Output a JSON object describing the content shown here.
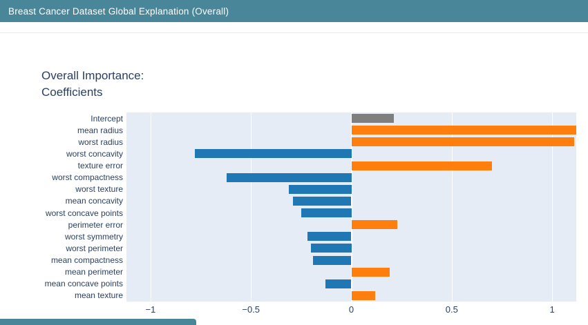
{
  "header": {
    "title": "Breast Cancer Dataset Global Explanation (Overall)",
    "background": "#4a8699"
  },
  "chart": {
    "title": "Overall Importance:\nCoefficients"
  },
  "chart_data": {
    "type": "bar",
    "orientation": "horizontal",
    "title": "Overall Importance: Coefficients",
    "categories": [
      "Intercept",
      "mean radius",
      "worst radius",
      "worst concavity",
      "texture error",
      "worst compactness",
      "worst texture",
      "mean concavity",
      "worst concave points",
      "perimeter error",
      "worst symmetry",
      "worst perimeter",
      "mean compactness",
      "mean perimeter",
      "mean concave points",
      "mean texture"
    ],
    "values": [
      0.21,
      1.12,
      1.11,
      -0.78,
      0.7,
      -0.62,
      -0.31,
      -0.29,
      -0.25,
      0.23,
      -0.22,
      -0.2,
      -0.19,
      0.19,
      -0.13,
      0.12
    ],
    "colors": [
      "#7f7f7f",
      "#ff7f0e",
      "#ff7f0e",
      "#1f77b4",
      "#ff7f0e",
      "#1f77b4",
      "#1f77b4",
      "#1f77b4",
      "#1f77b4",
      "#ff7f0e",
      "#1f77b4",
      "#1f77b4",
      "#1f77b4",
      "#ff7f0e",
      "#1f77b4",
      "#ff7f0e"
    ],
    "palette": {
      "positive": "#ff7f0e",
      "negative": "#1f77b4",
      "intercept": "#7f7f7f"
    },
    "xlabel": "",
    "ylabel": "",
    "xlim": [
      -1.12,
      1.12
    ],
    "xticks": [
      -1,
      -0.5,
      0,
      0.5,
      1
    ],
    "xtick_labels": [
      "−1",
      "−0.5",
      "0",
      "0.5",
      "1"
    ],
    "grid": true,
    "plot_background": "#e5ecf6",
    "gridline_color": "#ffffff",
    "text_color": "#2a3f5f",
    "legend": "none"
  }
}
